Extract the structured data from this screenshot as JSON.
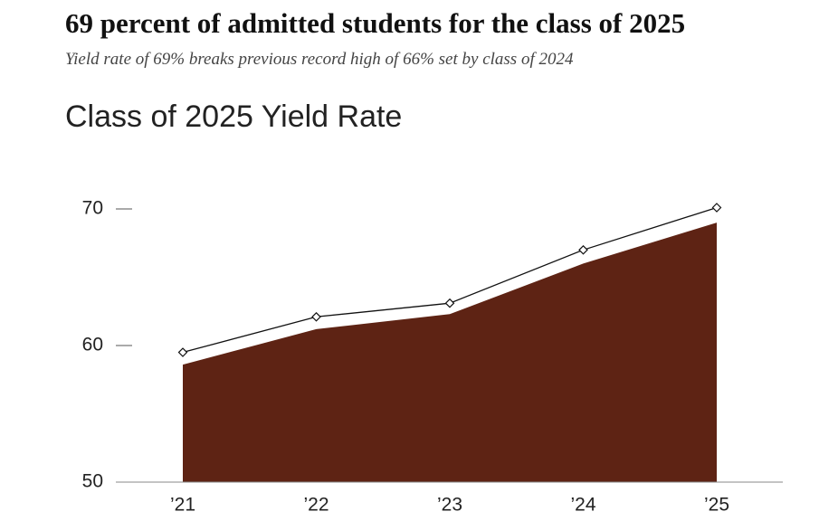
{
  "chart_data": {
    "type": "area",
    "headline": "69 percent of admitted students for the class of 2025",
    "subtitle": "Yield rate of 69% breaks previous record high of 66% set by class of 2024",
    "title": "Class of 2025 Yield Rate",
    "categories": [
      "’21",
      "’22",
      "’23",
      "’24",
      "’25"
    ],
    "series": [
      {
        "type": "area",
        "color": "#5e2314",
        "values": [
          58.6,
          61.2,
          62.3,
          66.0,
          69.0
        ]
      },
      {
        "type": "line",
        "color": "#111111",
        "values": [
          59.5,
          62.1,
          63.1,
          67.0,
          70.1
        ]
      }
    ],
    "ylim": [
      50,
      72.5
    ],
    "yticks": [
      50,
      60,
      70
    ]
  }
}
